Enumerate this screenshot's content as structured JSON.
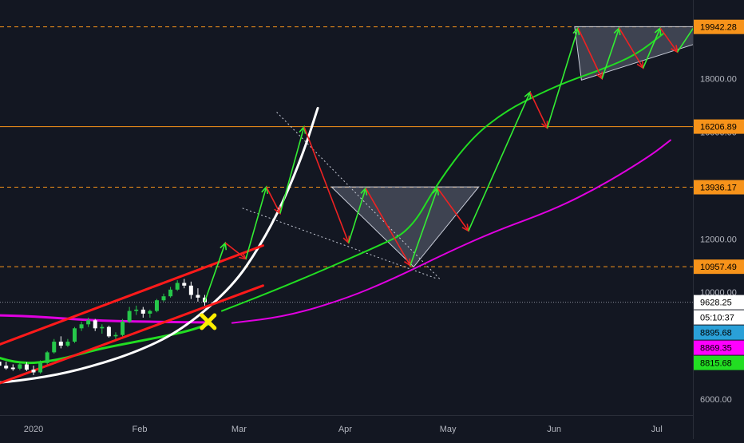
{
  "colors": {
    "background": "#131722",
    "axis_text": "#b2b5be",
    "axis_line": "#2a2e39",
    "level_line": "#f7931a",
    "label_orange": "#f7931a",
    "label_white": "#ffffff",
    "label_blue": "#2aa0d8",
    "label_magenta": "#ff00ff",
    "label_green": "#22dd22",
    "candle_up": "#26c84a",
    "candle_down": "#ffffff",
    "ma_green": "#22dd22",
    "ma_magenta": "#e000e0",
    "channel_red": "#ff1a1a",
    "parabola_white": "#ffffff",
    "arrow_green": "#33ee33",
    "arrow_red": "#ee2222",
    "marker_yellow": "#ffee00",
    "triangle_fill": "#b0b8cc"
  },
  "chart_data": {
    "type": "candlestick",
    "title": "",
    "xlabel": "",
    "ylabel": "",
    "x_ticks": [
      "2020",
      "Feb",
      "Mar",
      "Apr",
      "May",
      "Jun",
      "Jul"
    ],
    "y_ticks": [
      6000,
      10000,
      12000,
      16000,
      18000
    ],
    "y_tick_labels": [
      "6000.00",
      "10000.00",
      "12000.00",
      "16000.00",
      "18000.00"
    ],
    "ylim": [
      5400,
      20800
    ],
    "grid": false,
    "horizontal_levels": [
      {
        "value": 19942.28,
        "label": "19942.28",
        "style": "dashed"
      },
      {
        "value": 16206.89,
        "label": "16206.89",
        "style": "solid"
      },
      {
        "value": 13936.17,
        "label": "13936.17",
        "style": "dashed"
      },
      {
        "value": 10957.49,
        "label": "10957.49",
        "style": "dashed"
      }
    ],
    "price_labels": [
      {
        "value": 9628.25,
        "label": "9628.25",
        "kind": "last-price"
      },
      {
        "value": 9300.0,
        "label": "05:10:37",
        "kind": "countdown"
      },
      {
        "value": 8895.68,
        "label": "8895.68",
        "kind": "ma-blue"
      },
      {
        "value": 8869.35,
        "label": "8869.35",
        "kind": "ma-magenta"
      },
      {
        "value": 8815.68,
        "label": "8815.68",
        "kind": "ma-green"
      }
    ],
    "candles_ohlc": [
      {
        "date": "2019-12-22",
        "o": 7400,
        "h": 7550,
        "l": 7150,
        "c": 7250
      },
      {
        "date": "2019-12-24",
        "o": 7250,
        "h": 7400,
        "l": 7100,
        "c": 7150
      },
      {
        "date": "2019-12-26",
        "o": 7180,
        "h": 7300,
        "l": 7060,
        "c": 7120
      },
      {
        "date": "2019-12-28",
        "o": 7140,
        "h": 7350,
        "l": 7080,
        "c": 7300
      },
      {
        "date": "2019-12-30",
        "o": 7300,
        "h": 7380,
        "l": 7050,
        "c": 7100
      },
      {
        "date": "2020-01-01",
        "o": 7100,
        "h": 7250,
        "l": 6900,
        "c": 7000
      },
      {
        "date": "2020-01-03",
        "o": 7000,
        "h": 7450,
        "l": 6950,
        "c": 7350
      },
      {
        "date": "2020-01-05",
        "o": 7350,
        "h": 7800,
        "l": 7300,
        "c": 7750
      },
      {
        "date": "2020-01-07",
        "o": 7750,
        "h": 8250,
        "l": 7700,
        "c": 8150
      },
      {
        "date": "2020-01-09",
        "o": 8150,
        "h": 8350,
        "l": 7900,
        "c": 8000
      },
      {
        "date": "2020-01-11",
        "o": 8000,
        "h": 8250,
        "l": 7950,
        "c": 8150
      },
      {
        "date": "2020-01-13",
        "o": 8150,
        "h": 8700,
        "l": 8100,
        "c": 8650
      },
      {
        "date": "2020-01-15",
        "o": 8650,
        "h": 8900,
        "l": 8550,
        "c": 8800
      },
      {
        "date": "2020-01-17",
        "o": 8800,
        "h": 9050,
        "l": 8700,
        "c": 8950
      },
      {
        "date": "2020-01-19",
        "o": 8950,
        "h": 9000,
        "l": 8550,
        "c": 8650
      },
      {
        "date": "2020-01-21",
        "o": 8650,
        "h": 8800,
        "l": 8450,
        "c": 8700
      },
      {
        "date": "2020-01-23",
        "o": 8700,
        "h": 8750,
        "l": 8300,
        "c": 8350
      },
      {
        "date": "2020-01-25",
        "o": 8350,
        "h": 8500,
        "l": 8250,
        "c": 8400
      },
      {
        "date": "2020-01-27",
        "o": 8400,
        "h": 9000,
        "l": 8350,
        "c": 8900
      },
      {
        "date": "2020-01-29",
        "o": 8900,
        "h": 9450,
        "l": 8850,
        "c": 9300
      },
      {
        "date": "2020-01-31",
        "o": 9300,
        "h": 9500,
        "l": 9150,
        "c": 9350
      },
      {
        "date": "2020-02-02",
        "o": 9350,
        "h": 9450,
        "l": 9050,
        "c": 9200
      },
      {
        "date": "2020-02-04",
        "o": 9200,
        "h": 9350,
        "l": 9050,
        "c": 9300
      },
      {
        "date": "2020-02-06",
        "o": 9300,
        "h": 9750,
        "l": 9250,
        "c": 9700
      },
      {
        "date": "2020-02-08",
        "o": 9700,
        "h": 9950,
        "l": 9650,
        "c": 9850
      },
      {
        "date": "2020-02-10",
        "o": 9850,
        "h": 10200,
        "l": 9800,
        "c": 10100
      },
      {
        "date": "2020-02-12",
        "o": 10100,
        "h": 10450,
        "l": 10050,
        "c": 10350
      },
      {
        "date": "2020-02-14",
        "o": 10350,
        "h": 10500,
        "l": 10150,
        "c": 10250
      },
      {
        "date": "2020-02-16",
        "o": 10250,
        "h": 10400,
        "l": 9750,
        "c": 9900
      },
      {
        "date": "2020-02-18",
        "o": 9900,
        "h": 10150,
        "l": 9650,
        "c": 9800
      },
      {
        "date": "2020-02-20",
        "o": 9800,
        "h": 9900,
        "l": 9500,
        "c": 9628
      }
    ],
    "series": [
      {
        "kind": "ma-magenta-long",
        "color_key": "ma_magenta",
        "points": [
          [
            "2019-12-17",
            9150
          ],
          [
            "2020-01-01",
            9100
          ],
          [
            "2020-01-17",
            8950
          ],
          [
            "2020-02-01",
            8900
          ],
          [
            "2020-02-21",
            8870
          ]
        ]
      },
      {
        "kind": "ma-magenta-long-projection",
        "color_key": "ma_magenta",
        "points": [
          [
            "2020-02-28",
            8850
          ],
          [
            "2020-03-15",
            9100
          ],
          [
            "2020-04-01",
            9750
          ],
          [
            "2020-04-15",
            10500
          ],
          [
            "2020-05-01",
            11500
          ],
          [
            "2020-05-15",
            12300
          ],
          [
            "2020-06-01",
            13100
          ],
          [
            "2020-06-15",
            14000
          ],
          [
            "2020-06-29",
            15100
          ],
          [
            "2020-07-05",
            15700
          ]
        ]
      },
      {
        "kind": "ma-green",
        "color_key": "ma_green",
        "points": [
          [
            "2019-12-17",
            7750
          ],
          [
            "2019-12-28",
            7300
          ],
          [
            "2020-01-08",
            7450
          ],
          [
            "2020-01-19",
            7850
          ],
          [
            "2020-01-31",
            8150
          ],
          [
            "2020-02-14",
            8500
          ],
          [
            "2020-02-21",
            8800
          ]
        ]
      },
      {
        "kind": "ma-green-projection",
        "color_key": "ma_green",
        "points": [
          [
            "2020-02-25",
            9300
          ],
          [
            "2020-03-10",
            10000
          ],
          [
            "2020-03-25",
            10800
          ],
          [
            "2020-04-10",
            11700
          ],
          [
            "2020-04-20",
            12300
          ],
          [
            "2020-04-28",
            14100
          ],
          [
            "2020-05-08",
            15800
          ],
          [
            "2020-05-18",
            16800
          ],
          [
            "2020-05-28",
            17450
          ],
          [
            "2020-06-05",
            17900
          ],
          [
            "2020-06-15",
            18350
          ],
          [
            "2020-06-25",
            18900
          ],
          [
            "2020-07-03",
            19700
          ]
        ]
      },
      {
        "kind": "parabola",
        "color_key": "parabola_white",
        "points": [
          [
            "2019-12-17",
            6550
          ],
          [
            "2020-01-01",
            6750
          ],
          [
            "2020-01-15",
            7100
          ],
          [
            "2020-02-01",
            7800
          ],
          [
            "2020-02-14",
            8650
          ],
          [
            "2020-02-28",
            10200
          ],
          [
            "2020-03-07",
            11700
          ],
          [
            "2020-03-14",
            13400
          ],
          [
            "2020-03-20",
            15300
          ],
          [
            "2020-03-24",
            16900
          ]
        ]
      },
      {
        "kind": "channel-upper",
        "color_key": "channel_red",
        "points": [
          [
            "2019-12-17",
            7800
          ],
          [
            "2020-03-08",
            11750
          ]
        ]
      },
      {
        "kind": "channel-lower",
        "color_key": "channel_red",
        "points": [
          [
            "2019-12-17",
            6350
          ],
          [
            "2020-03-08",
            10250
          ]
        ]
      }
    ],
    "projection_arrows": [
      {
        "from": [
          "2020-02-20",
          9650
        ],
        "to": [
          "2020-02-26",
          11850
        ],
        "color_key": "arrow_green"
      },
      {
        "from": [
          "2020-02-26",
          11850
        ],
        "to": [
          "2020-03-03",
          11250
        ],
        "color_key": "arrow_red"
      },
      {
        "from": [
          "2020-03-03",
          11250
        ],
        "to": [
          "2020-03-09",
          13950
        ],
        "color_key": "arrow_green"
      },
      {
        "from": [
          "2020-03-09",
          13950
        ],
        "to": [
          "2020-03-13",
          12950
        ],
        "color_key": "arrow_red"
      },
      {
        "from": [
          "2020-03-13",
          12950
        ],
        "to": [
          "2020-03-20",
          16200
        ],
        "color_key": "arrow_green"
      },
      {
        "from": [
          "2020-03-20",
          16200
        ],
        "to": [
          "2020-04-02",
          11850
        ],
        "color_key": "arrow_red"
      },
      {
        "from": [
          "2020-04-02",
          11850
        ],
        "to": [
          "2020-04-07",
          13900
        ],
        "color_key": "arrow_green"
      },
      {
        "from": [
          "2020-04-07",
          13900
        ],
        "to": [
          "2020-04-20",
          11000
        ],
        "color_key": "arrow_red"
      },
      {
        "from": [
          "2020-04-20",
          11000
        ],
        "to": [
          "2020-04-28",
          13900
        ],
        "color_key": "arrow_green"
      },
      {
        "from": [
          "2020-04-28",
          13900
        ],
        "to": [
          "2020-05-07",
          12300
        ],
        "color_key": "arrow_red"
      },
      {
        "from": [
          "2020-05-07",
          12300
        ],
        "to": [
          "2020-05-25",
          17500
        ],
        "color_key": "arrow_green"
      },
      {
        "from": [
          "2020-05-25",
          17500
        ],
        "to": [
          "2020-05-30",
          16150
        ],
        "color_key": "arrow_red"
      },
      {
        "from": [
          "2020-05-30",
          16150
        ],
        "to": [
          "2020-06-08",
          19900
        ],
        "color_key": "arrow_green"
      },
      {
        "from": [
          "2020-06-08",
          19900
        ],
        "to": [
          "2020-06-15",
          18000
        ],
        "color_key": "arrow_red"
      },
      {
        "from": [
          "2020-06-15",
          18000
        ],
        "to": [
          "2020-06-20",
          19900
        ],
        "color_key": "arrow_green"
      },
      {
        "from": [
          "2020-06-20",
          19900
        ],
        "to": [
          "2020-06-27",
          18400
        ],
        "color_key": "arrow_red"
      },
      {
        "from": [
          "2020-06-27",
          18400
        ],
        "to": [
          "2020-07-02",
          19900
        ],
        "color_key": "arrow_green"
      },
      {
        "from": [
          "2020-07-02",
          19900
        ],
        "to": [
          "2020-07-07",
          19000
        ],
        "color_key": "arrow_red"
      },
      {
        "from": [
          "2020-07-07",
          19000
        ],
        "to": [
          "2020-07-14",
          20350
        ],
        "color_key": "arrow_green"
      }
    ],
    "triangles": [
      {
        "points": [
          [
            "2020-03-28",
            13950
          ],
          [
            "2020-05-10",
            13950
          ],
          [
            "2020-04-21",
            10950
          ]
        ]
      },
      {
        "points": [
          [
            "2020-06-07",
            19950
          ],
          [
            "2020-07-28",
            19950
          ],
          [
            "2020-06-09",
            17950
          ]
        ]
      }
    ],
    "dotted_trendlines": [
      {
        "from": [
          "2020-03-12",
          16750
        ],
        "to": [
          "2020-04-29",
          10450
        ]
      },
      {
        "from": [
          "2020-03-02",
          13150
        ],
        "to": [
          "2020-04-28",
          10500
        ]
      }
    ],
    "markers": [
      {
        "kind": "x",
        "at": [
          "2020-02-21",
          8900
        ],
        "color_key": "marker_yellow"
      }
    ]
  }
}
